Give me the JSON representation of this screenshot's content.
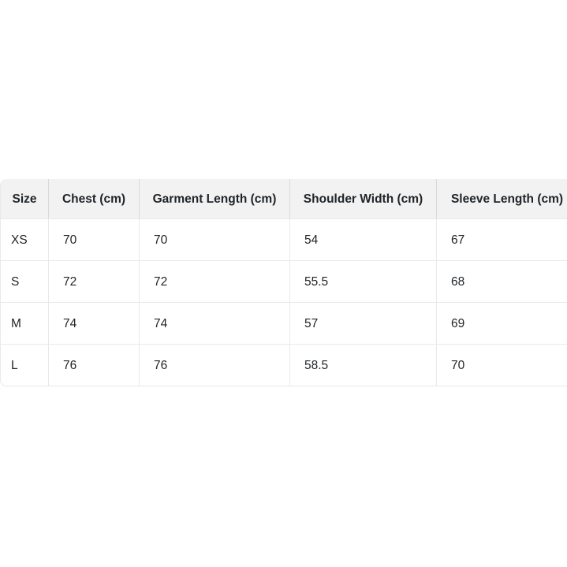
{
  "chart_data": {
    "type": "table",
    "columns": [
      "Size",
      "Chest (cm)",
      "Garment Length (cm)",
      "Shoulder Width (cm)",
      "Sleeve Length (cm)"
    ],
    "rows": [
      [
        "XS",
        "70",
        "70",
        "54",
        "67"
      ],
      [
        "S",
        "72",
        "72",
        "55.5",
        "68"
      ],
      [
        "M",
        "74",
        "74",
        "57",
        "69"
      ],
      [
        "L",
        "76",
        "76",
        "58.5",
        "70"
      ]
    ],
    "layout_hints": {
      "header_row": "gray background, bold, centered",
      "data_alignment": "left",
      "grid": "full cell borders",
      "right_edge": "last column clipped by viewport"
    }
  },
  "colors": {
    "page_background": "#ffffff",
    "header_background": "#f2f2f2",
    "header_divider": "#d9d9d9",
    "body_border": "#e9e9e9",
    "text": "#212529"
  }
}
